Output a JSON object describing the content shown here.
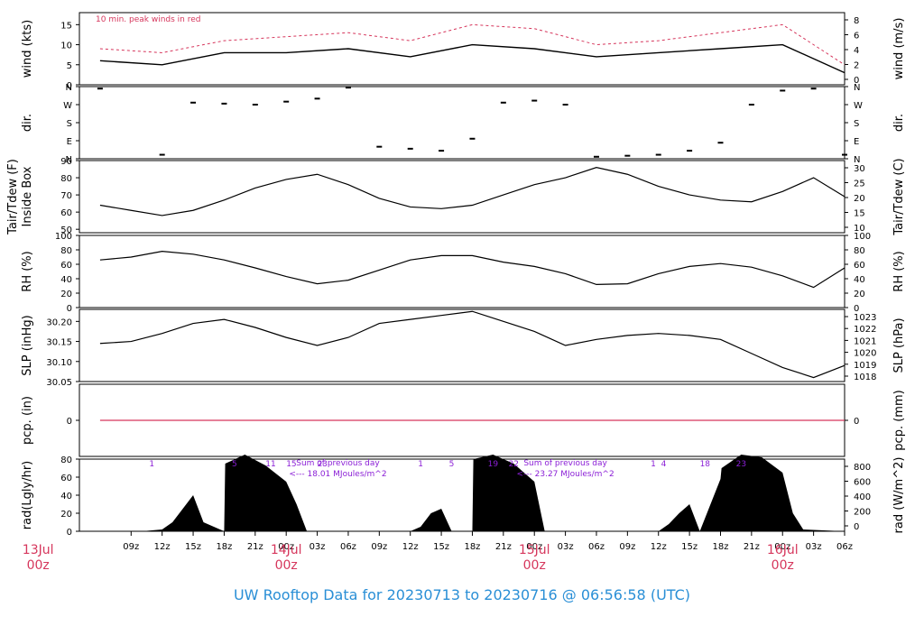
{
  "title": "UW Rooftop Data for 20230713  to  20230716 @ 06:56:58  (UTC)",
  "colors": {
    "accent_red": "#d6365c",
    "title_blue": "#2a8fd6",
    "purple": "#8b1fd6",
    "line": "#000000"
  },
  "time_axis": {
    "hour_labels": [
      "09z",
      "12z",
      "15z",
      "18z",
      "21z",
      "00z",
      "03z",
      "06z",
      "09z",
      "12z",
      "15z",
      "18z",
      "21z",
      "00z",
      "03z",
      "06z",
      "09z",
      "12z",
      "15z",
      "18z",
      "21z",
      "00z",
      "03z",
      "06z"
    ],
    "day_labels": [
      {
        "date": "13Jul",
        "time": "00z"
      },
      {
        "date": "14Jul",
        "time": "00z"
      },
      {
        "date": "15Jul",
        "time": "00z"
      },
      {
        "date": "16Jul",
        "time": "00z"
      }
    ]
  },
  "chart_data": [
    {
      "type": "line",
      "id": "wind",
      "ylabel": "wind (kts)",
      "ylabel_right": "wind (m/s)",
      "annotation": "10 min. peak winds in red",
      "ylim": [
        0,
        18
      ],
      "ticks_left": [
        0,
        5,
        10,
        15
      ],
      "ticks_right": [
        "0",
        "2",
        "4",
        "6",
        "8"
      ],
      "x_hours": [
        6,
        12,
        18,
        24,
        30,
        36,
        42,
        48,
        54,
        60,
        66,
        72,
        78
      ],
      "series": [
        {
          "values": [
            6,
            5,
            8,
            8,
            9,
            7,
            10,
            9,
            7,
            8,
            9,
            10,
            3
          ]
        },
        {
          "values": [
            9,
            8,
            11,
            12,
            13,
            11,
            15,
            14,
            10,
            11,
            13,
            15,
            5
          ]
        }
      ]
    },
    {
      "type": "scatter",
      "id": "dir",
      "ylabel": "dir.",
      "ylabel_right": "dir.",
      "ticks": [
        "N",
        "E",
        "S",
        "W",
        "N"
      ],
      "ylim": [
        0,
        360
      ],
      "x_hours": [
        6,
        12,
        15,
        18,
        21,
        24,
        27,
        30,
        33,
        36,
        39,
        42,
        45,
        48,
        51,
        54,
        57,
        60,
        63,
        66,
        69,
        72,
        75,
        78
      ],
      "values": [
        350,
        20,
        280,
        275,
        270,
        285,
        300,
        355,
        60,
        50,
        40,
        100,
        280,
        290,
        270,
        10,
        15,
        20,
        40,
        80,
        270,
        340,
        350,
        20
      ]
    },
    {
      "type": "line",
      "id": "temp",
      "ylabel": "Inside Box\nTair/Tdew (F)",
      "ylabel_right": "Tair/Tdew (C)",
      "ylim": [
        48,
        90
      ],
      "ticks_left": [
        50,
        60,
        70,
        80,
        90
      ],
      "ticks_right": [
        "10",
        "15",
        "20",
        "25",
        "30"
      ],
      "x_hours": [
        6,
        9,
        12,
        15,
        18,
        21,
        24,
        27,
        30,
        33,
        36,
        39,
        42,
        45,
        48,
        51,
        54,
        57,
        60,
        63,
        66,
        69,
        72,
        75,
        78
      ],
      "values": [
        64,
        61,
        58,
        61,
        67,
        74,
        79,
        82,
        76,
        68,
        63,
        62,
        64,
        70,
        76,
        80,
        86,
        82,
        75,
        70,
        67,
        66,
        72,
        80,
        69
      ]
    },
    {
      "type": "line",
      "id": "rh",
      "ylabel": "RH (%)",
      "ylabel_right": "RH (%)",
      "ylim": [
        0,
        100
      ],
      "ticks": [
        0,
        20,
        40,
        60,
        80,
        100
      ],
      "x_hours": [
        6,
        9,
        12,
        15,
        18,
        21,
        24,
        27,
        30,
        33,
        36,
        39,
        42,
        45,
        48,
        51,
        54,
        57,
        60,
        63,
        66,
        69,
        72,
        75,
        78
      ],
      "values": [
        66,
        70,
        78,
        74,
        66,
        55,
        43,
        33,
        38,
        52,
        66,
        72,
        72,
        63,
        57,
        47,
        32,
        33,
        47,
        57,
        61,
        56,
        44,
        28,
        55
      ]
    },
    {
      "type": "line",
      "id": "slp",
      "ylabel": "SLP (inHg)",
      "ylabel_right": "SLP (hPa)",
      "ylim": [
        30.05,
        30.23
      ],
      "ticks_left": [
        "30.05",
        "30.10",
        "30.15",
        "30.20"
      ],
      "ticks_right": [
        "1018",
        "1019",
        "1020",
        "1021",
        "1022",
        "1023"
      ],
      "x_hours": [
        6,
        9,
        12,
        15,
        18,
        21,
        24,
        27,
        30,
        33,
        36,
        39,
        42,
        45,
        48,
        51,
        54,
        57,
        60,
        63,
        66,
        69,
        72,
        75,
        78
      ],
      "values": [
        30.145,
        30.15,
        30.17,
        30.195,
        30.205,
        30.185,
        30.16,
        30.14,
        30.16,
        30.195,
        30.205,
        30.215,
        30.225,
        30.2,
        30.175,
        30.14,
        30.155,
        30.165,
        30.17,
        30.165,
        30.155,
        30.12,
        30.085,
        30.06,
        30.09
      ]
    },
    {
      "type": "line",
      "id": "pcp",
      "ylabel": "pcp. (in)",
      "ylabel_right": "pcp. (mm)",
      "ylim": [
        -1,
        1
      ],
      "ticks_left": [
        "0"
      ],
      "ticks_right": [
        "0"
      ],
      "x_hours": [
        6,
        78
      ],
      "values": [
        0,
        0
      ]
    },
    {
      "type": "area",
      "id": "rad",
      "ylabel": "rad(Lgly/hr)",
      "ylabel_right": "rad (W/m^2)",
      "ylim": [
        0,
        80
      ],
      "ticks_left": [
        0,
        20,
        40,
        60,
        80
      ],
      "ticks_right": [
        "0",
        "200",
        "400",
        "600",
        "800"
      ],
      "x_hours": [
        6,
        10,
        12,
        13,
        14,
        15,
        16,
        18,
        18.1,
        20,
        22,
        24,
        25,
        26,
        30,
        36,
        37,
        38,
        39,
        40,
        42,
        42.1,
        44,
        46,
        48,
        49,
        50,
        54,
        60,
        61,
        62,
        63,
        64,
        66,
        66.1,
        68,
        70,
        72,
        73,
        74,
        78
      ],
      "values": [
        0,
        0,
        2,
        10,
        25,
        40,
        10,
        0,
        75,
        85,
        73,
        55,
        30,
        0,
        0,
        0,
        5,
        20,
        25,
        0,
        0,
        80,
        85,
        75,
        55,
        0,
        0,
        0,
        0,
        8,
        20,
        30,
        0,
        58,
        70,
        85,
        82,
        65,
        20,
        2,
        0
      ],
      "hour_marks_top": [
        {
          "text": "1",
          "x_hour": 11
        },
        {
          "text": "5",
          "x_hour": 19
        },
        {
          "text": "11",
          "x_hour": 22.5
        },
        {
          "text": "15",
          "x_hour": 24.5
        },
        {
          "text": "23",
          "x_hour": 27.5
        },
        {
          "text": "1",
          "x_hour": 37
        },
        {
          "text": "5",
          "x_hour": 40
        },
        {
          "text": "19",
          "x_hour": 44
        },
        {
          "text": "22",
          "x_hour": 46
        },
        {
          "text": "1",
          "x_hour": 59.5
        },
        {
          "text": "4",
          "x_hour": 60.5
        },
        {
          "text": "18",
          "x_hour": 64.5
        },
        {
          "text": "23",
          "x_hour": 68
        }
      ],
      "sums": [
        {
          "line1": "Sum of previous day",
          "line2": "<--- 18.01 MJoules/m^2",
          "x_hour": 29
        },
        {
          "line1": "Sum of previous day",
          "line2": "<--- 23.27 MJoules/m^2",
          "x_hour": 51
        }
      ]
    }
  ]
}
